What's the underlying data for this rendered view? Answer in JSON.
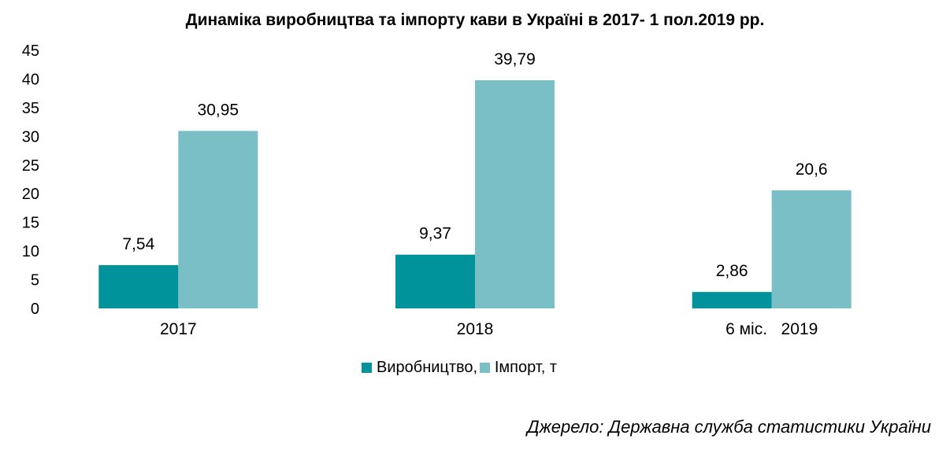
{
  "chart_data": {
    "type": "bar",
    "title": "Динаміка виробництва та імпорту кави в Україні в 2017- 1 пол.2019 рр.",
    "categories": [
      "2017",
      "2018",
      "6 міс.   2019"
    ],
    "series": [
      {
        "name": "Виробництво, т",
        "values": [
          7.54,
          9.37,
          2.86
        ],
        "labels": [
          "7,54",
          "9,37",
          "2,86"
        ],
        "color": "#00939B"
      },
      {
        "name": "Імпорт, т",
        "values": [
          30.95,
          39.79,
          20.6
        ],
        "labels": [
          "30,95",
          "39,79",
          "20,6"
        ],
        "color": "#7ABEC6"
      }
    ],
    "ylim": [
      0,
      45
    ],
    "yticks": [
      "0",
      "5",
      "10",
      "15",
      "20",
      "25",
      "30",
      "35",
      "40",
      "45"
    ],
    "grid": false,
    "legend_position": "bottom"
  },
  "source": "Джерело: Державна служба статистики України"
}
